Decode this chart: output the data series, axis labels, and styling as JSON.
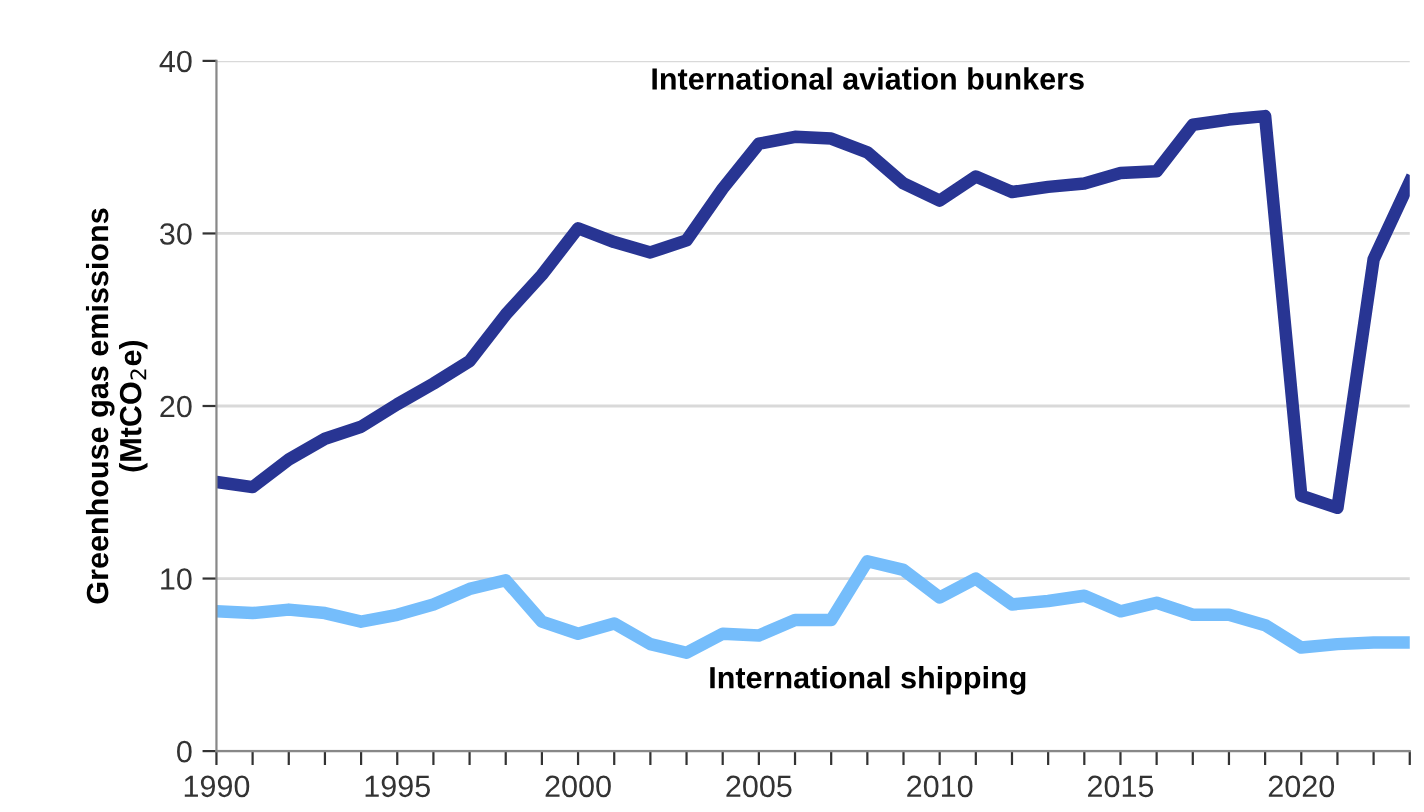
{
  "chart_data": {
    "type": "line",
    "ylabel": "Greenhouse gas emissions\n(MtCO$_{2}$e)",
    "x": [
      1990,
      1991,
      1992,
      1993,
      1994,
      1995,
      1996,
      1997,
      1998,
      1999,
      2000,
      2001,
      2002,
      2003,
      2004,
      2005,
      2006,
      2007,
      2008,
      2009,
      2010,
      2011,
      2012,
      2013,
      2014,
      2015,
      2016,
      2017,
      2018,
      2019,
      2020,
      2021,
      2022,
      2023
    ],
    "series": [
      {
        "name": "International aviation bunkers",
        "color": "#283593",
        "values": [
          15.6,
          15.3,
          16.9,
          18.1,
          18.8,
          20.1,
          21.3,
          22.6,
          25.3,
          27.6,
          30.3,
          29.5,
          28.9,
          29.6,
          32.6,
          35.2,
          35.6,
          35.5,
          34.7,
          32.9,
          31.9,
          33.3,
          32.4,
          32.7,
          32.9,
          33.5,
          33.6,
          36.3,
          36.6,
          36.8,
          14.8,
          14.1,
          28.5,
          33.0
        ]
      },
      {
        "name": "International shipping",
        "color": "#75bdfb",
        "values": [
          8.1,
          8.0,
          8.2,
          8.0,
          7.5,
          7.9,
          8.5,
          9.4,
          9.9,
          7.5,
          6.8,
          7.4,
          6.2,
          5.7,
          6.8,
          6.7,
          7.6,
          7.6,
          11.0,
          10.5,
          8.9,
          10.0,
          8.5,
          8.7,
          9.0,
          8.1,
          8.6,
          7.9,
          7.9,
          7.3,
          6.0,
          6.2,
          6.3,
          6.3
        ]
      }
    ],
    "xlim": [
      1990,
      2023
    ],
    "ylim": [
      0,
      40
    ],
    "xticks": [
      1990,
      {
        "value": 1991,
        "label": null
      },
      {
        "value": 1992,
        "label": null
      },
      {
        "value": 1993,
        "label": null
      },
      {
        "value": 1994,
        "label": null
      },
      1995,
      {
        "value": 1996,
        "label": null
      },
      {
        "value": 1997,
        "label": null
      },
      {
        "value": 1998,
        "label": null
      },
      {
        "value": 1999,
        "label": null
      },
      2000,
      {
        "value": 2001,
        "label": null
      },
      {
        "value": 2002,
        "label": null
      },
      {
        "value": 2003,
        "label": null
      },
      {
        "value": 2004,
        "label": null
      },
      2005,
      {
        "value": 2006,
        "label": null
      },
      {
        "value": 2007,
        "label": null
      },
      {
        "value": 2008,
        "label": null
      },
      {
        "value": 2009,
        "label": null
      },
      2010,
      {
        "value": 2011,
        "label": null
      },
      {
        "value": 2012,
        "label": null
      },
      {
        "value": 2013,
        "label": null
      },
      {
        "value": 2014,
        "label": null
      },
      2015,
      {
        "value": 2016,
        "label": null
      },
      {
        "value": 2017,
        "label": null
      },
      {
        "value": 2018,
        "label": null
      },
      {
        "value": 2019,
        "label": null
      },
      2020,
      {
        "value": 2021,
        "label": null
      },
      {
        "value": 2022,
        "label": null
      },
      {
        "value": 2023,
        "label": null
      }
    ],
    "yticks": [
      0,
      10,
      20,
      30,
      40
    ],
    "grid": "y",
    "legend": false,
    "marker": "none",
    "line_style": "solid"
  }
}
